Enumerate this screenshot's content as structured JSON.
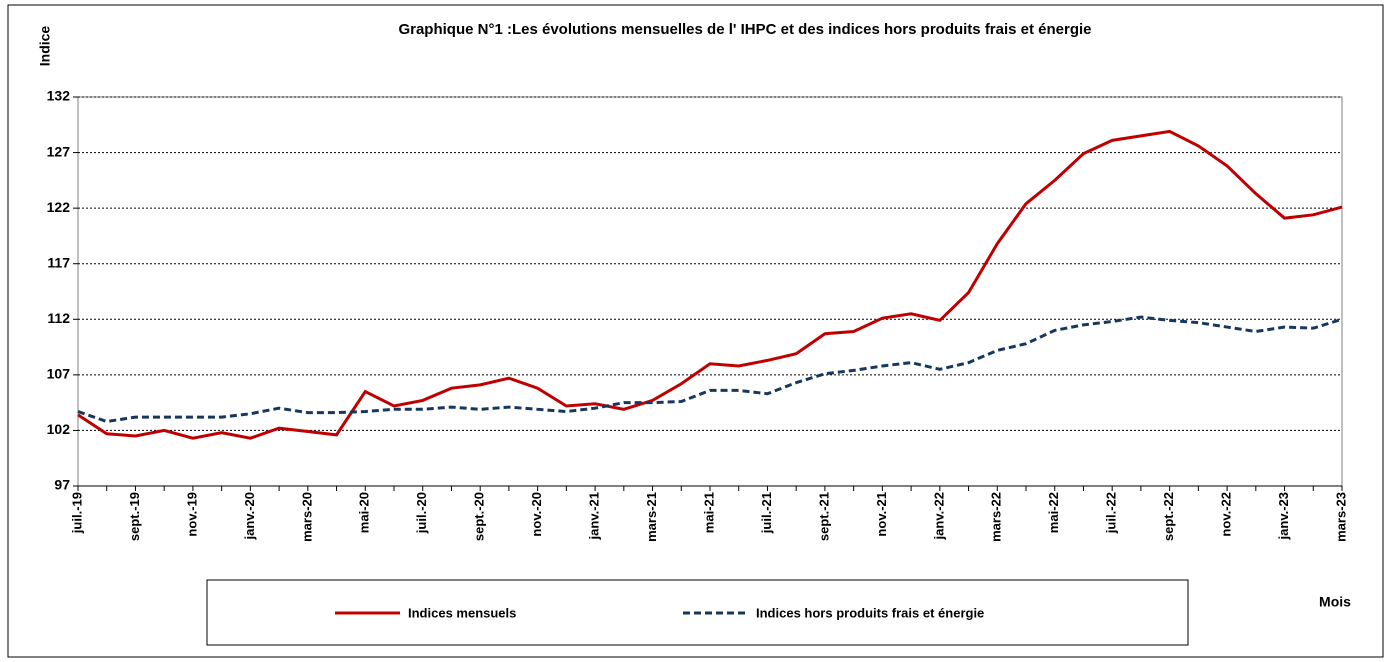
{
  "chart_data": {
    "type": "line",
    "title": "Graphique N°1 :Les évolutions mensuelles de l' IHPC et des indices  hors produits frais et énergie",
    "y_label": "Indice",
    "x_label": "Mois",
    "categories": [
      "juil.-19",
      null,
      "sept.-19",
      null,
      "nov.-19",
      null,
      "janv.-20",
      null,
      "mars-20",
      null,
      "mai-20",
      null,
      "juil.-20",
      null,
      "sept.-20",
      null,
      "nov.-20",
      null,
      "janv.-21",
      null,
      "mars-21",
      null,
      "mai-21",
      null,
      "juil.-21",
      null,
      "sept.-21",
      null,
      "nov.-21",
      null,
      "janv.-22",
      null,
      "mars-22",
      null,
      "mai-22",
      null,
      "juil.-22",
      null,
      "sept.-22",
      null,
      "nov.-22",
      null,
      "janv.-23",
      null,
      "mars-23"
    ],
    "series": [
      {
        "name": "Indices mensuels",
        "color": "#c00000",
        "dash": false,
        "values": [
          103.4,
          101.7,
          101.5,
          102.0,
          101.3,
          101.8,
          101.3,
          102.2,
          101.9,
          101.6,
          105.5,
          104.2,
          104.7,
          105.8,
          106.1,
          106.7,
          105.8,
          104.2,
          104.4,
          103.9,
          104.7,
          106.2,
          108.0,
          107.8,
          108.3,
          108.9,
          110.7,
          110.9,
          112.1,
          112.5,
          111.9,
          114.4,
          118.8,
          122.4,
          124.5,
          126.9,
          128.1,
          128.5,
          128.9,
          127.6,
          125.8,
          123.3,
          121.1,
          121.4,
          122.1
        ]
      },
      {
        "name": "Indices  hors produits frais et énergie",
        "color": "#17375e",
        "dash": true,
        "values": [
          103.7,
          102.8,
          103.2,
          103.2,
          103.2,
          103.2,
          103.5,
          104.0,
          103.6,
          103.6,
          103.7,
          103.9,
          103.9,
          104.1,
          103.9,
          104.1,
          103.9,
          103.7,
          104.0,
          104.5,
          104.5,
          104.6,
          105.6,
          105.6,
          105.3,
          106.3,
          107.1,
          107.4,
          107.8,
          108.1,
          107.5,
          108.1,
          109.2,
          109.8,
          111.0,
          111.5,
          111.8,
          112.2,
          111.9,
          111.7,
          111.3,
          110.9,
          111.3,
          111.2,
          112.0
        ]
      }
    ],
    "ylim": [
      97,
      132
    ],
    "yticks": [
      97,
      102,
      107,
      112,
      117,
      122,
      127,
      132
    ],
    "grid": true
  }
}
